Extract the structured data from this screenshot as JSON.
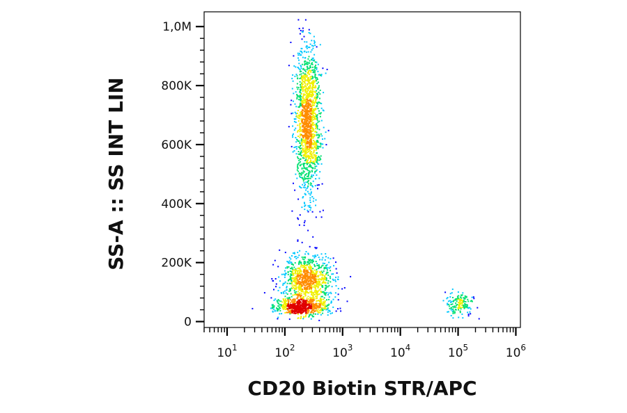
{
  "chart_data": {
    "type": "scatter",
    "subtype": "flow-cytometry-density-dot-plot",
    "xlabel": "CD20 Biotin STR/APC",
    "ylabel": "SS-A :: SS INT LIN",
    "x_scale": "log",
    "y_scale": "linear",
    "xlim": [
      4,
      1200000
    ],
    "ylim": [
      -20000,
      1050000
    ],
    "x_ticks": [
      {
        "value": 10,
        "base": "10",
        "exp": "1"
      },
      {
        "value": 100,
        "base": "10",
        "exp": "2"
      },
      {
        "value": 1000,
        "base": "10",
        "exp": "3"
      },
      {
        "value": 10000,
        "base": "10",
        "exp": "4"
      },
      {
        "value": 100000,
        "base": "10",
        "exp": "5"
      },
      {
        "value": 1000000,
        "base": "10",
        "exp": "6"
      }
    ],
    "y_ticks": [
      {
        "value": 0,
        "label": "0"
      },
      {
        "value": 200000,
        "label": "200K"
      },
      {
        "value": 400000,
        "label": "400K"
      },
      {
        "value": 600000,
        "label": "600K"
      },
      {
        "value": 800000,
        "label": "800K"
      },
      {
        "value": 1000000,
        "label": "1,0M"
      }
    ],
    "density_colormap": [
      "#0000ff",
      "#00c8ff",
      "#00e070",
      "#f0f000",
      "#ff8c00",
      "#e00000"
    ],
    "populations": [
      {
        "x_center": 200,
        "x_log_sd": 0.22,
        "y_center": 50000,
        "y_sd": 15000,
        "count": 650
      },
      {
        "x_center": 250,
        "x_log_sd": 0.22,
        "y_center": 140000,
        "y_sd": 45000,
        "count": 950
      },
      {
        "x_center": 250,
        "x_log_sd": 0.11,
        "y_center": 680000,
        "y_sd": 130000,
        "count": 1500
      },
      {
        "x_center": 110000,
        "x_log_sd": 0.12,
        "y_center": 60000,
        "y_sd": 18000,
        "count": 160
      }
    ],
    "grid": false,
    "legend": "none"
  }
}
